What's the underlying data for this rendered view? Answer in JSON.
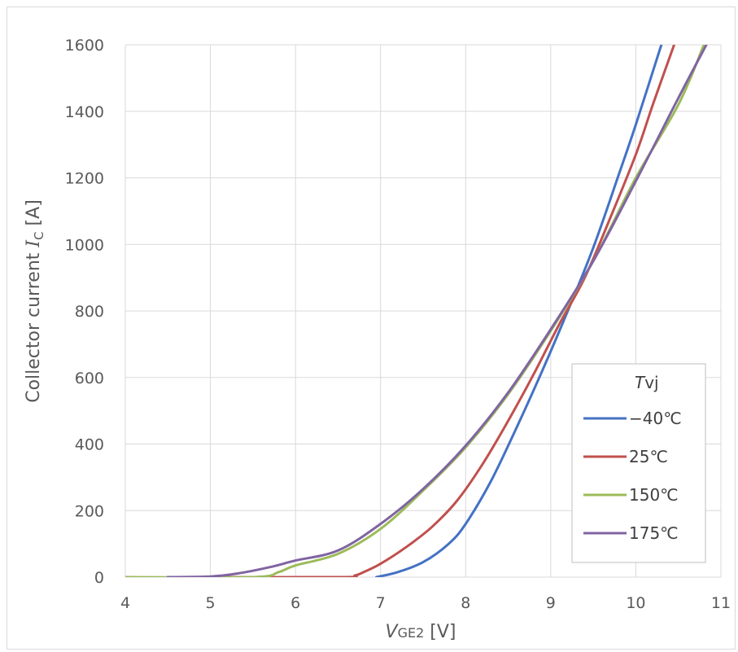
{
  "chart_data": {
    "type": "line",
    "xlabel": {
      "main": "V",
      "sub": "GE2",
      "unit": " [V]"
    },
    "ylabel": {
      "main": "Collector current ",
      "symbol": "I",
      "sub": "C",
      "unit": " [A]"
    },
    "xlim": [
      4,
      11
    ],
    "ylim": [
      0,
      1600
    ],
    "x_ticks": [
      "4",
      "5",
      "6",
      "7",
      "8",
      "9",
      "10",
      "11"
    ],
    "y_ticks": [
      "0",
      "200",
      "400",
      "600",
      "800",
      "1000",
      "1200",
      "1400",
      "1600"
    ],
    "grid": true,
    "legend": {
      "title_italic": "T",
      "title_rest": "vj",
      "placement": "right, lower-middle"
    },
    "series": [
      {
        "name": "−40℃",
        "color": "#4472c4",
        "points": [
          [
            6.95,
            0
          ],
          [
            7.2,
            15
          ],
          [
            7.5,
            45
          ],
          [
            7.8,
            100
          ],
          [
            8.0,
            160
          ],
          [
            8.3,
            290
          ],
          [
            8.6,
            450
          ],
          [
            8.9,
            620
          ],
          [
            9.2,
            800
          ],
          [
            9.5,
            990
          ],
          [
            9.8,
            1210
          ],
          [
            10.0,
            1360
          ],
          [
            10.3,
            1600
          ]
        ]
      },
      {
        "name": "25℃",
        "color": "#c0504d",
        "points": [
          [
            4.5,
            0
          ],
          [
            6.5,
            0
          ],
          [
            6.7,
            5
          ],
          [
            6.8,
            15
          ],
          [
            7.0,
            40
          ],
          [
            7.3,
            90
          ],
          [
            7.6,
            150
          ],
          [
            7.9,
            230
          ],
          [
            8.2,
            340
          ],
          [
            8.5,
            470
          ],
          [
            8.8,
            610
          ],
          [
            9.1,
            760
          ],
          [
            9.4,
            900
          ],
          [
            9.7,
            1080
          ],
          [
            10.0,
            1270
          ],
          [
            10.2,
            1420
          ],
          [
            10.45,
            1600
          ]
        ]
      },
      {
        "name": "150℃",
        "color": "#9bbb59",
        "points": [
          [
            4.0,
            0
          ],
          [
            5.5,
            0
          ],
          [
            5.8,
            15
          ],
          [
            6.0,
            35
          ],
          [
            6.5,
            70
          ],
          [
            7.0,
            145
          ],
          [
            7.5,
            260
          ],
          [
            8.0,
            390
          ],
          [
            8.5,
            550
          ],
          [
            9.0,
            740
          ],
          [
            9.5,
            950
          ],
          [
            10.0,
            1200
          ],
          [
            10.5,
            1420
          ],
          [
            10.8,
            1600
          ]
        ]
      },
      {
        "name": "175℃",
        "color": "#8064a2",
        "points": [
          [
            4.5,
            0
          ],
          [
            5.0,
            2
          ],
          [
            5.3,
            10
          ],
          [
            5.7,
            30
          ],
          [
            6.0,
            50
          ],
          [
            6.5,
            80
          ],
          [
            7.0,
            160
          ],
          [
            7.5,
            265
          ],
          [
            8.0,
            395
          ],
          [
            8.5,
            555
          ],
          [
            9.0,
            745
          ],
          [
            9.5,
            950
          ],
          [
            10.0,
            1190
          ],
          [
            10.5,
            1440
          ],
          [
            10.85,
            1610
          ]
        ]
      }
    ]
  }
}
